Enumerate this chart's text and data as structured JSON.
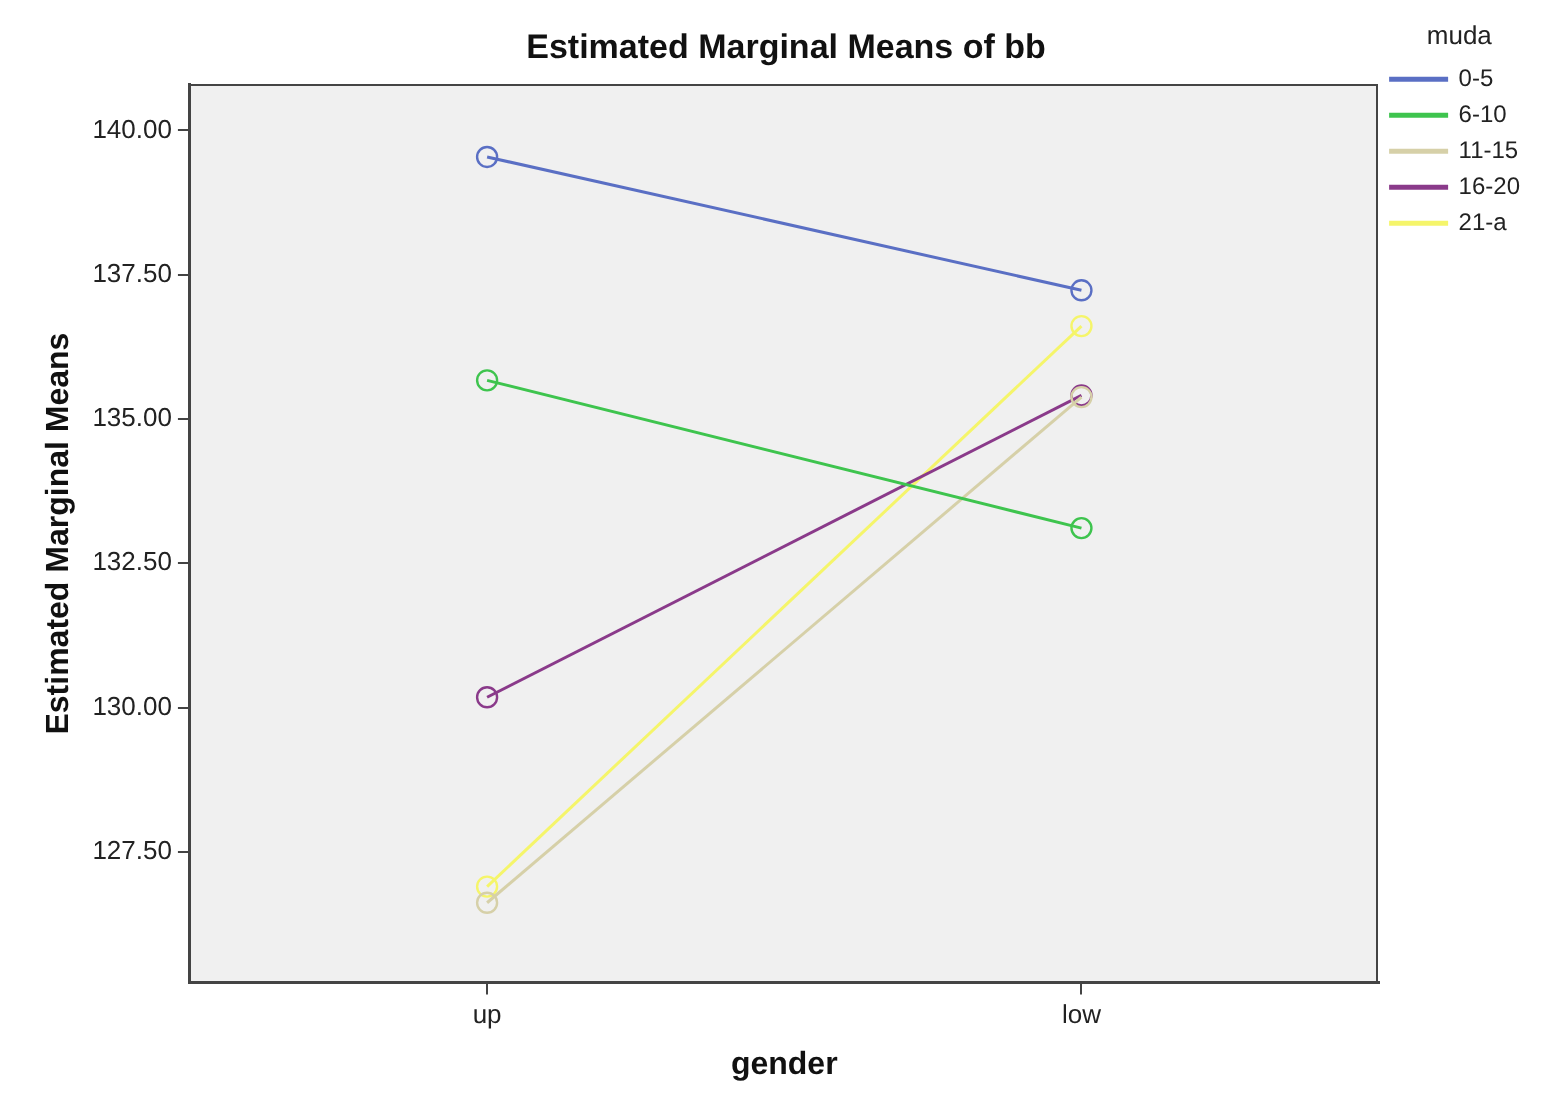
{
  "chart_data": {
    "type": "line",
    "title": "Estimated Marginal Means of bb",
    "xlabel": "gender",
    "ylabel": "Estimated Marginal Means",
    "legend_title": "muda",
    "categories": [
      "up",
      "low"
    ],
    "series": [
      {
        "name": "0-5",
        "color": "#5a6fc4",
        "values": [
          139.54,
          137.23
        ]
      },
      {
        "name": "6-10",
        "color": "#3ec44e",
        "values": [
          135.67,
          133.11
        ]
      },
      {
        "name": "11-15",
        "color": "#d6d0a8",
        "values": [
          126.62,
          135.38
        ]
      },
      {
        "name": "16-20",
        "color": "#8a3a8a",
        "values": [
          130.18,
          135.41
        ]
      },
      {
        "name": "21-a",
        "color": "#f5f56a",
        "values": [
          126.9,
          136.61
        ]
      }
    ],
    "ylim": [
      125.24,
      140.79
    ],
    "yticks": [
      {
        "value": 127.5,
        "label": "127.50"
      },
      {
        "value": 130,
        "label": "130.00"
      },
      {
        "value": 132.5,
        "label": "132.50"
      },
      {
        "value": 135,
        "label": "135.00"
      },
      {
        "value": 137.5,
        "label": "137.50"
      },
      {
        "value": 140,
        "label": "140.00"
      }
    ],
    "grid": false,
    "legend": "right",
    "marker": "circle",
    "line_style": "solid"
  }
}
